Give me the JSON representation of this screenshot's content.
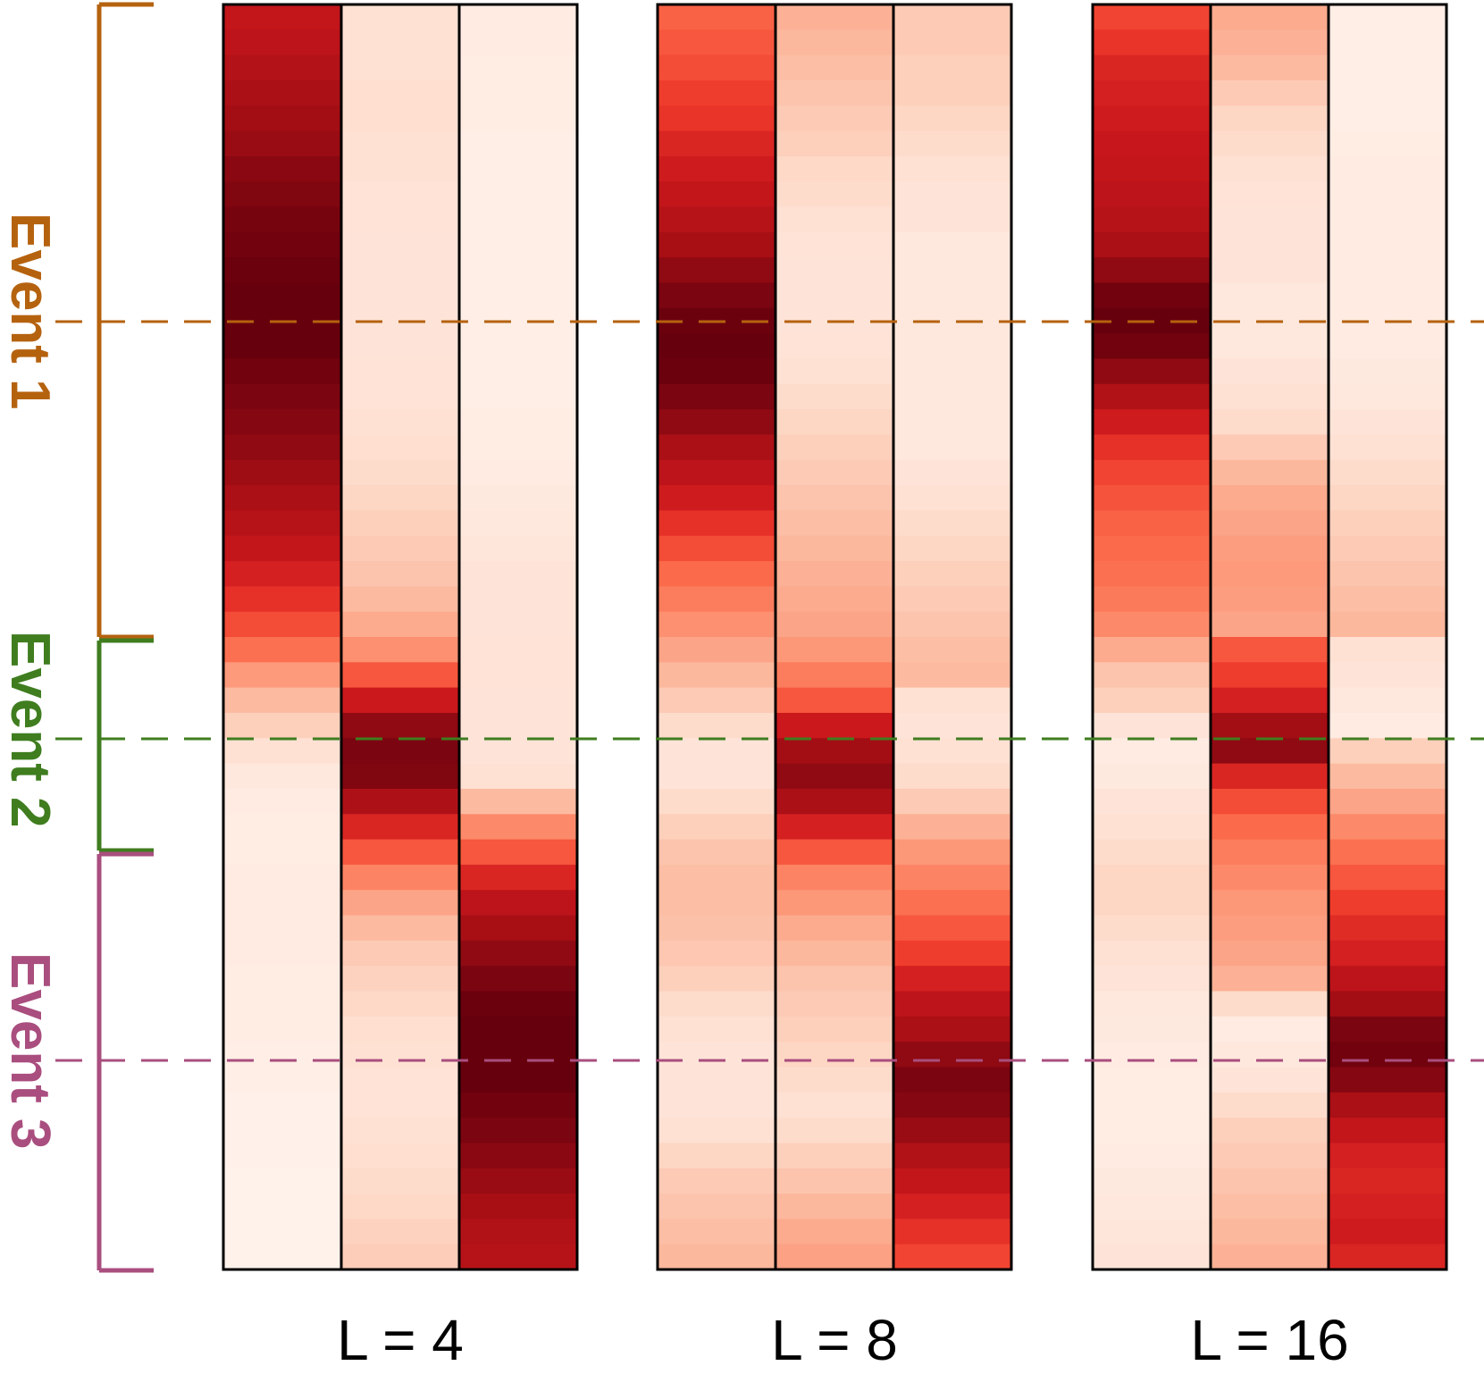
{
  "chart_data": {
    "type": "heatmap",
    "colormap": [
      "#fff5f0",
      "#fee0d2",
      "#fcbba1",
      "#fc9272",
      "#fb6a4a",
      "#ef3b2c",
      "#cb181d",
      "#a50f15",
      "#67000d"
    ],
    "panels": [
      {
        "label": "L = 4",
        "columns": [
          [
            0.78,
            0.8,
            0.83,
            0.86,
            0.88,
            0.9,
            0.93,
            0.95,
            0.97,
            0.98,
            0.99,
            1.0,
            1.0,
            1.0,
            0.98,
            0.96,
            0.94,
            0.92,
            0.89,
            0.86,
            0.82,
            0.78,
            0.72,
            0.66,
            0.58,
            0.48,
            0.35,
            0.25,
            0.18,
            0.12,
            0.08,
            0.06,
            0.05,
            0.05,
            0.06,
            0.06,
            0.06,
            0.06,
            0.05,
            0.05,
            0.05,
            0.04,
            0.04,
            0.03,
            0.03,
            0.03,
            0.02,
            0.02,
            0.02,
            0.02
          ],
          [
            0.12,
            0.12,
            0.12,
            0.13,
            0.13,
            0.12,
            0.12,
            0.11,
            0.11,
            0.1,
            0.1,
            0.1,
            0.1,
            0.1,
            0.11,
            0.11,
            0.12,
            0.13,
            0.14,
            0.16,
            0.18,
            0.2,
            0.22,
            0.25,
            0.3,
            0.38,
            0.55,
            0.75,
            0.92,
            0.96,
            0.95,
            0.85,
            0.7,
            0.55,
            0.42,
            0.32,
            0.25,
            0.2,
            0.17,
            0.15,
            0.13,
            0.12,
            0.11,
            0.11,
            0.12,
            0.13,
            0.14,
            0.15,
            0.17,
            0.19
          ],
          [
            0.06,
            0.06,
            0.05,
            0.05,
            0.05,
            0.04,
            0.04,
            0.04,
            0.04,
            0.04,
            0.04,
            0.04,
            0.04,
            0.04,
            0.04,
            0.04,
            0.05,
            0.05,
            0.06,
            0.07,
            0.08,
            0.09,
            0.1,
            0.1,
            0.1,
            0.11,
            0.11,
            0.1,
            0.1,
            0.1,
            0.12,
            0.25,
            0.4,
            0.55,
            0.7,
            0.8,
            0.87,
            0.92,
            0.96,
            0.99,
            1.0,
            1.0,
            1.0,
            0.98,
            0.96,
            0.93,
            0.9,
            0.87,
            0.84,
            0.82
          ]
        ]
      },
      {
        "label": "L = 8",
        "columns": [
          [
            0.52,
            0.55,
            0.58,
            0.62,
            0.65,
            0.7,
            0.74,
            0.78,
            0.82,
            0.87,
            0.92,
            0.96,
            0.99,
            1.0,
            0.99,
            0.96,
            0.92,
            0.86,
            0.8,
            0.74,
            0.66,
            0.58,
            0.5,
            0.44,
            0.38,
            0.32,
            0.26,
            0.2,
            0.14,
            0.1,
            0.1,
            0.14,
            0.18,
            0.22,
            0.24,
            0.24,
            0.23,
            0.21,
            0.18,
            0.14,
            0.12,
            0.1,
            0.1,
            0.1,
            0.12,
            0.16,
            0.2,
            0.22,
            0.24,
            0.26
          ],
          [
            0.28,
            0.26,
            0.24,
            0.22,
            0.2,
            0.18,
            0.15,
            0.14,
            0.12,
            0.11,
            0.1,
            0.1,
            0.1,
            0.11,
            0.12,
            0.14,
            0.16,
            0.18,
            0.2,
            0.22,
            0.24,
            0.26,
            0.28,
            0.3,
            0.32,
            0.36,
            0.44,
            0.55,
            0.75,
            0.88,
            0.92,
            0.86,
            0.72,
            0.55,
            0.42,
            0.36,
            0.3,
            0.26,
            0.22,
            0.2,
            0.18,
            0.16,
            0.14,
            0.12,
            0.14,
            0.18,
            0.22,
            0.26,
            0.3,
            0.33
          ],
          [
            0.2,
            0.2,
            0.18,
            0.18,
            0.16,
            0.14,
            0.12,
            0.1,
            0.1,
            0.08,
            0.08,
            0.08,
            0.08,
            0.08,
            0.08,
            0.08,
            0.08,
            0.08,
            0.1,
            0.12,
            0.14,
            0.16,
            0.18,
            0.2,
            0.22,
            0.24,
            0.25,
            0.12,
            0.1,
            0.12,
            0.14,
            0.2,
            0.28,
            0.36,
            0.42,
            0.48,
            0.55,
            0.62,
            0.72,
            0.8,
            0.86,
            0.92,
            0.96,
            0.94,
            0.9,
            0.84,
            0.78,
            0.72,
            0.66,
            0.6
          ]
        ]
      },
      {
        "label": "L = 16",
        "columns": [
          [
            0.6,
            0.65,
            0.7,
            0.72,
            0.74,
            0.76,
            0.78,
            0.8,
            0.82,
            0.86,
            0.92,
            0.98,
            1.0,
            0.98,
            0.92,
            0.84,
            0.74,
            0.66,
            0.6,
            0.56,
            0.52,
            0.5,
            0.48,
            0.45,
            0.4,
            0.3,
            0.22,
            0.18,
            0.1,
            0.06,
            0.07,
            0.1,
            0.12,
            0.14,
            0.16,
            0.16,
            0.14,
            0.12,
            0.1,
            0.08,
            0.07,
            0.06,
            0.05,
            0.05,
            0.05,
            0.06,
            0.07,
            0.08,
            0.09,
            0.1
          ],
          [
            0.3,
            0.28,
            0.25,
            0.2,
            0.16,
            0.14,
            0.12,
            0.11,
            0.1,
            0.1,
            0.1,
            0.08,
            0.08,
            0.08,
            0.1,
            0.12,
            0.14,
            0.2,
            0.26,
            0.3,
            0.32,
            0.34,
            0.35,
            0.34,
            0.32,
            0.55,
            0.62,
            0.72,
            0.88,
            0.92,
            0.7,
            0.58,
            0.5,
            0.44,
            0.4,
            0.36,
            0.34,
            0.32,
            0.28,
            0.14,
            0.06,
            0.08,
            0.1,
            0.14,
            0.18,
            0.2,
            0.22,
            0.24,
            0.26,
            0.28
          ],
          [
            0.04,
            0.04,
            0.04,
            0.04,
            0.04,
            0.05,
            0.06,
            0.06,
            0.06,
            0.06,
            0.06,
            0.06,
            0.06,
            0.06,
            0.07,
            0.08,
            0.1,
            0.12,
            0.14,
            0.16,
            0.18,
            0.2,
            0.22,
            0.24,
            0.26,
            0.12,
            0.1,
            0.08,
            0.06,
            0.18,
            0.25,
            0.32,
            0.4,
            0.48,
            0.55,
            0.62,
            0.68,
            0.72,
            0.8,
            0.88,
            0.96,
            0.98,
            0.94,
            0.86,
            0.78,
            0.72,
            0.7,
            0.72,
            0.74,
            0.7
          ]
        ]
      }
    ]
  },
  "events": [
    {
      "label": "Event 1",
      "color": "#b5620f"
    },
    {
      "label": "Event 2",
      "color": "#3f7d1f"
    },
    {
      "label": "Event 3",
      "color": "#a94e7e"
    }
  ]
}
